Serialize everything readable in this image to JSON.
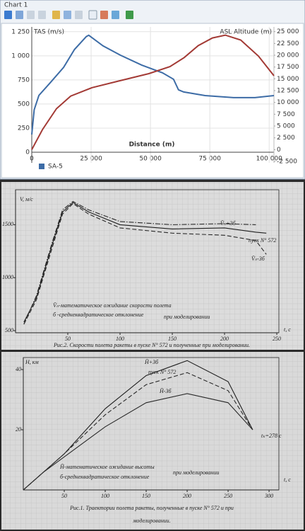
{
  "window": {
    "title": "Chart 1"
  },
  "chart_data": [
    {
      "type": "line",
      "x_label": "Distance (m)",
      "y_label": "TAS (m/s)",
      "y2_label": "ASL Altitude (m)",
      "xlim": [
        0,
        102000
      ],
      "xticks": [
        0,
        {
          "value": 25000,
          "label": "25 000"
        },
        {
          "value": 50000,
          "label": "50 000"
        },
        {
          "value": 75000,
          "label": "75 000"
        },
        {
          "value": 100000,
          "label": "100 000"
        }
      ],
      "ylim": [
        -110,
        1300
      ],
      "yticks": [
        0,
        250,
        500,
        750,
        {
          "value": 1000,
          "label": "1 000"
        },
        {
          "value": 1250,
          "label": "1 250"
        }
      ],
      "y2lim": [
        -2800,
        26000
      ],
      "y2ticks": [
        {
          "value": -2500,
          "label": "-2 500"
        },
        0,
        {
          "value": 2500,
          "label": "2 500"
        },
        {
          "value": 5000,
          "label": "5 000"
        },
        {
          "value": 7500,
          "label": "7 500"
        },
        {
          "value": 10000,
          "label": "10 000"
        },
        {
          "value": 12500,
          "label": "12 500"
        },
        {
          "value": 15000,
          "label": "15 000"
        },
        {
          "value": 17500,
          "label": "17 500"
        },
        {
          "value": 20000,
          "label": "20 000"
        },
        {
          "value": 22500,
          "label": "22 500"
        },
        {
          "value": 25000,
          "label": "25 000"
        }
      ],
      "grid": true,
      "legend": "bottom-left",
      "series": [
        {
          "name": "SA-5",
          "color": "#3d6ca6",
          "x": [
            0,
            1000,
            3000,
            7500,
            13400,
            18000,
            23000,
            24000,
            30000,
            37300,
            46300,
            55000,
            59700,
            61800,
            64000,
            73000,
            85000,
            94000,
            102000
          ],
          "values": [
            184,
            440,
            590,
            713,
            880,
            1066,
            1200,
            1213,
            1103,
            1007,
            904,
            824,
            757,
            647,
            625,
            588,
            566,
            566,
            588
          ]
        },
        {
          "color": "#a33a35",
          "axis": "y2",
          "x": [
            0,
            4500,
            10400,
            16400,
            25400,
            37300,
            49300,
            58200,
            64200,
            70100,
            76100,
            81500,
            88000,
            95500,
            102000
          ],
          "values": [
            0,
            4230,
            8680,
            11350,
            13130,
            14610,
            16100,
            17580,
            19500,
            22030,
            23660,
            24260,
            23220,
            19810,
            15650
          ]
        }
      ]
    },
    {
      "type": "line",
      "y_label": "V, м/с",
      "x_label": "t, c",
      "xlim": [
        0,
        252
      ],
      "xticks": [
        50,
        100,
        150,
        200,
        250
      ],
      "ylim": [
        480,
        1830
      ],
      "yticks": [
        500,
        1000,
        1500
      ],
      "grid": false,
      "caption": [
        "Рис.2. Скорости полета ракеты в пуске N° 572 и полученные при моделировании."
      ],
      "notes": [
        "V̄ₙ-математическое ожидание скорости полета",
        "б -среднеквадратическое отклонение",
        "при моделировании"
      ],
      "series": [
        {
          "name": "V̄ₙ+3б",
          "color": "#2a2a2a",
          "line_style": "dashdot",
          "x": [
            8,
            20,
            35,
            45,
            55,
            70,
            100,
            150,
            200,
            230,
            240
          ],
          "values": [
            560,
            830,
            1330,
            1640,
            1720,
            1640,
            1530,
            1500,
            1510,
            1500,
            null
          ]
        },
        {
          "name": "пуск N° 572",
          "color": "#1e1e1e",
          "line_style": "solid",
          "x": [
            8,
            20,
            35,
            45,
            55,
            70,
            100,
            150,
            200,
            230,
            240
          ],
          "values": [
            580,
            810,
            1310,
            1620,
            1710,
            1620,
            1500,
            1460,
            1470,
            1430,
            1420
          ]
        },
        {
          "name": "V̄ₙ-3б",
          "color": "#2a2a2a",
          "line_style": "dashed",
          "x": [
            8,
            20,
            35,
            45,
            55,
            70,
            100,
            150,
            200,
            230,
            240
          ],
          "values": [
            560,
            790,
            1280,
            1600,
            1700,
            1600,
            1470,
            1420,
            1400,
            1350,
            1220
          ]
        }
      ]
    },
    {
      "type": "line",
      "y_label": "H, км",
      "x_label": "t, c",
      "xlim": [
        0,
        312
      ],
      "xticks": [
        50,
        100,
        150,
        200,
        250,
        300
      ],
      "ylim": [
        0,
        44
      ],
      "yticks": [
        20,
        40
      ],
      "grid": false,
      "caption": [
        "Рис.1. Траектории полета ракеты, полученные в пуске N° 572 и при",
        "моделировании."
      ],
      "notes": [
        "H̄-математическое ожидание высоты",
        "б-среднеквадратическое отклонение",
        "при моделировании"
      ],
      "annotation": "tₖ=278 с",
      "series": [
        {
          "name": "H̄+3б",
          "color": "#1e1e1e",
          "line_style": "solid",
          "x": [
            0,
            25,
            50,
            100,
            150,
            200,
            250,
            280
          ],
          "values": [
            0,
            6,
            12,
            27,
            38,
            43,
            36,
            20
          ]
        },
        {
          "name": "пуск N° 572",
          "color": "#2a2a2a",
          "line_style": "dashed",
          "x": [
            0,
            25,
            50,
            100,
            150,
            200,
            250,
            280
          ],
          "values": [
            0,
            6,
            12,
            25,
            35,
            39,
            33,
            20
          ]
        },
        {
          "name": "H̄-3б",
          "color": "#2a2a2a",
          "line_style": "solid",
          "x": [
            0,
            25,
            50,
            100,
            150,
            200,
            250,
            280
          ],
          "values": [
            0,
            6,
            11,
            21,
            29,
            32,
            29,
            20
          ]
        }
      ]
    }
  ]
}
